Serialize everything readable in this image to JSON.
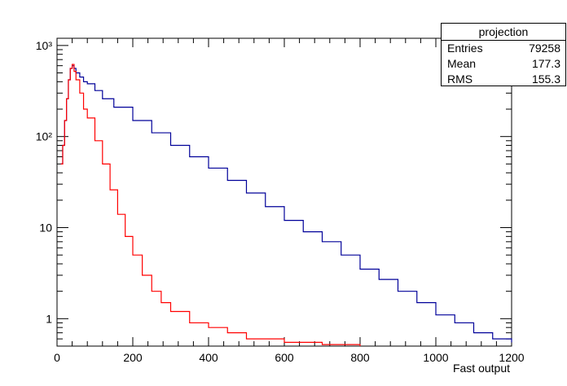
{
  "stats": {
    "title": "projection",
    "rows": [
      {
        "label": "Entries",
        "value": "79258"
      },
      {
        "label": "Mean",
        "value": "177.3"
      },
      {
        "label": "RMS",
        "value": "155.3"
      }
    ]
  },
  "chart_data": {
    "type": "line",
    "title": "",
    "xlabel": "Fast output",
    "ylabel": "",
    "yscale": "log",
    "xlim": [
      0,
      1200
    ],
    "ylim": [
      0.5,
      1200
    ],
    "x_ticks": [
      "0",
      "200",
      "400",
      "600",
      "800",
      "1000",
      "1200"
    ],
    "y_ticks": [
      "1",
      "10",
      "10²",
      "10³"
    ],
    "grid": false,
    "legend": "stats box top-right",
    "series": [
      {
        "color": "#000099",
        "x": [
          10,
          15,
          20,
          25,
          30,
          35,
          40,
          45,
          50,
          60,
          70,
          80,
          100,
          120,
          150,
          200,
          250,
          300,
          350,
          400,
          450,
          500,
          550,
          600,
          650,
          700,
          750,
          800,
          850,
          900,
          950,
          1000,
          1050,
          1100,
          1150,
          1200
        ],
        "values": [
          50,
          80,
          150,
          260,
          420,
          560,
          600,
          560,
          500,
          450,
          400,
          380,
          320,
          260,
          210,
          150,
          110,
          80,
          60,
          45,
          33,
          24,
          17,
          12,
          9,
          7,
          5,
          3.5,
          2.7,
          2,
          1.5,
          1.1,
          0.9,
          0.7,
          0.6,
          0.55
        ]
      },
      {
        "color": "#ff0000",
        "x": [
          10,
          15,
          20,
          25,
          30,
          35,
          40,
          45,
          50,
          60,
          70,
          80,
          100,
          120,
          140,
          160,
          180,
          200,
          225,
          250,
          275,
          300,
          350,
          400,
          450,
          500,
          600,
          700,
          800
        ],
        "values": [
          50,
          80,
          150,
          260,
          420,
          560,
          620,
          520,
          420,
          300,
          200,
          160,
          90,
          50,
          26,
          14,
          8,
          5,
          3,
          2,
          1.5,
          1.2,
          0.9,
          0.8,
          0.7,
          0.6,
          0.55,
          0.52,
          0.5
        ]
      }
    ]
  }
}
